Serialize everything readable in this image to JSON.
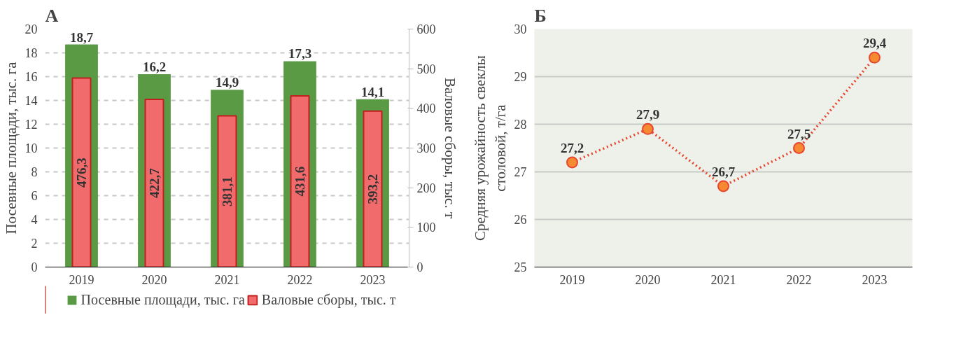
{
  "chart_data": [
    {
      "type": "bar",
      "title": "А",
      "categories": [
        "2019",
        "2020",
        "2021",
        "2022",
        "2023"
      ],
      "ylabel": "Посевные площади, тыс. га",
      "y2label": "Валовые сборы, тыс. т",
      "ylim": [
        0,
        20
      ],
      "yticks": [
        0,
        2,
        4,
        6,
        8,
        10,
        12,
        14,
        16,
        18,
        20
      ],
      "y2lim": [
        0,
        600
      ],
      "y2ticks": [
        0,
        100,
        200,
        300,
        400,
        500,
        600
      ],
      "grid": "y",
      "legend": "bottom",
      "series": [
        {
          "name": "Посевные площади, тыс. га",
          "color": "#5b9a45",
          "values": [
            18.7,
            16.2,
            14.9,
            17.3,
            14.1
          ],
          "value_labels": [
            "18,7",
            "16,2",
            "14,9",
            "17,3",
            "14,1"
          ]
        },
        {
          "name": "Валовые сборы, тыс. т",
          "color": "#f16a6c",
          "axis": "y2",
          "values": [
            476.3,
            422.7,
            381.1,
            431.6,
            393.2
          ],
          "value_labels": [
            "476,3",
            "422,7",
            "381,1",
            "431,6",
            "393,2"
          ]
        }
      ]
    },
    {
      "type": "line",
      "title": "Б",
      "categories": [
        "2019",
        "2020",
        "2021",
        "2022",
        "2023"
      ],
      "ylabel": "Средняя урожайность свеклы\nстоловой, т/га",
      "ylim": [
        25,
        30
      ],
      "yticks": [
        25,
        26,
        27,
        28,
        29,
        30
      ],
      "grid": "y",
      "marker": "circle",
      "line_style": "dotted",
      "series": [
        {
          "color": "#e8462f",
          "values": [
            27.2,
            27.9,
            26.7,
            27.5,
            29.4
          ],
          "value_labels": [
            "27,2",
            "27,9",
            "26,7",
            "27,5",
            "29,4"
          ]
        }
      ]
    }
  ]
}
